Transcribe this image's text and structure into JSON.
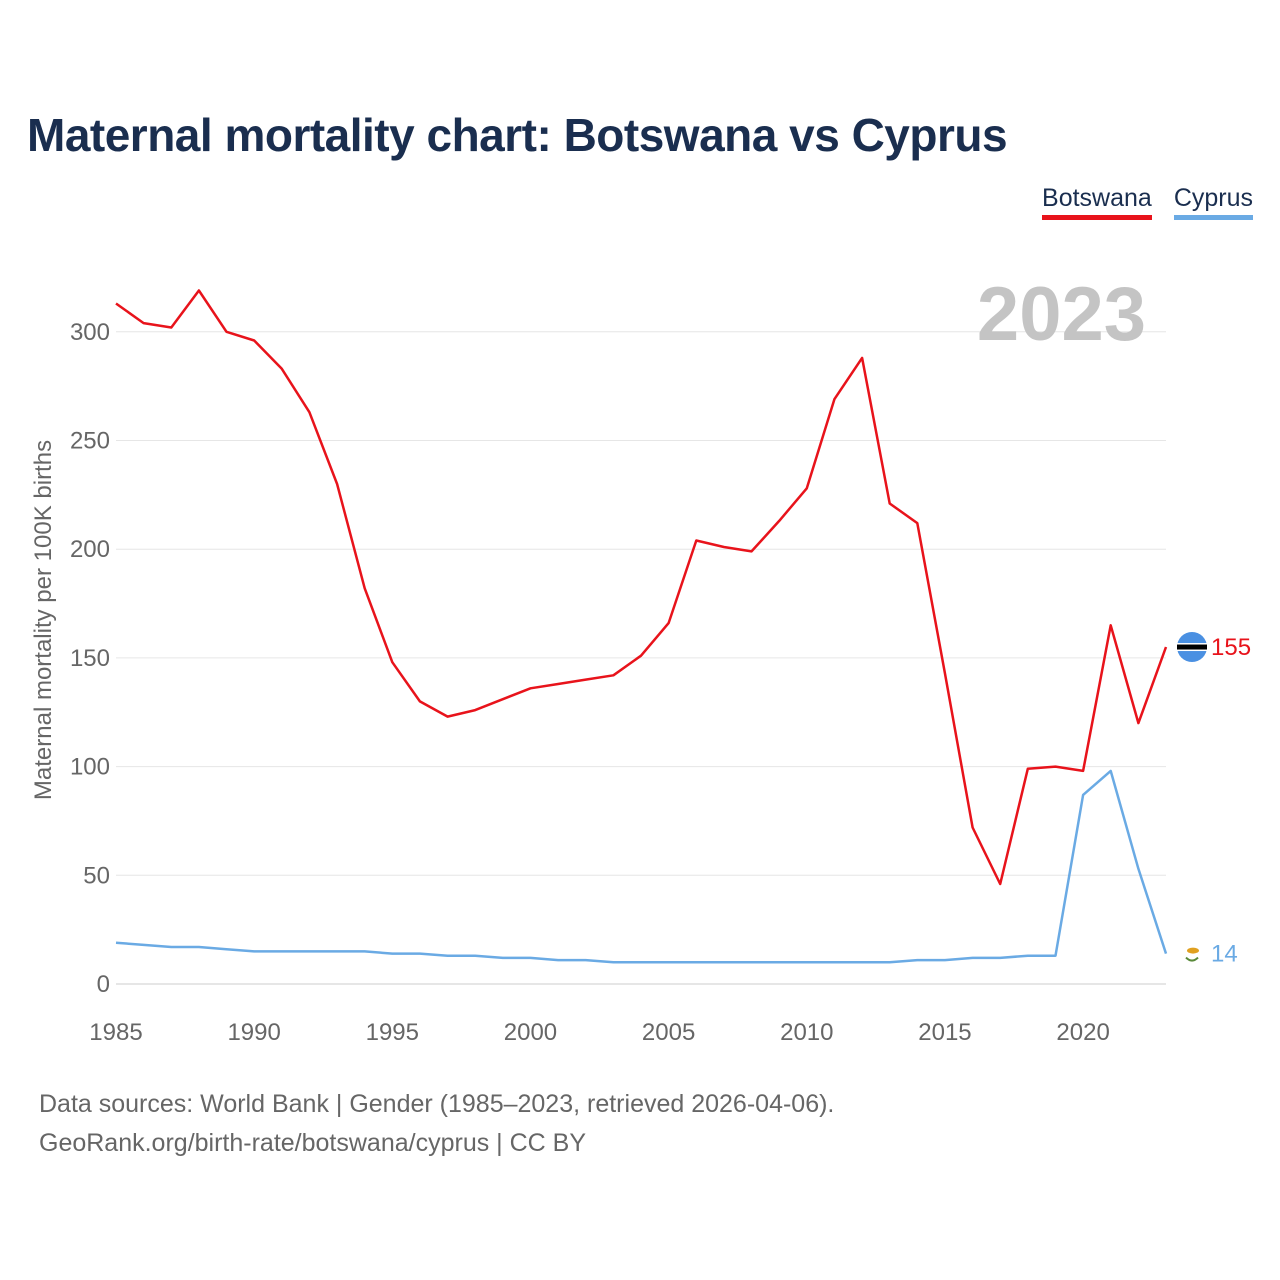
{
  "chart_data": {
    "type": "line",
    "title": "Maternal mortality chart: Botswana vs Cyprus",
    "ylabel": "Maternal mortality per 100K births",
    "xlabel": "",
    "year_label": "2023",
    "xlim": [
      1985,
      2023
    ],
    "ylim": [
      0,
      320
    ],
    "x_ticks": [
      1985,
      1990,
      1995,
      2000,
      2005,
      2010,
      2015,
      2020
    ],
    "y_ticks": [
      0,
      50,
      100,
      150,
      200,
      250,
      300
    ],
    "x": [
      1985,
      1986,
      1987,
      1988,
      1989,
      1990,
      1991,
      1992,
      1993,
      1994,
      1995,
      1996,
      1997,
      1998,
      1999,
      2000,
      2001,
      2002,
      2003,
      2004,
      2005,
      2006,
      2007,
      2008,
      2009,
      2010,
      2011,
      2012,
      2013,
      2014,
      2015,
      2016,
      2017,
      2018,
      2019,
      2020,
      2021,
      2022,
      2023
    ],
    "series": [
      {
        "name": "Botswana",
        "color": "#e8131b",
        "end_label": "155",
        "values": [
          313,
          304,
          302,
          319,
          300,
          296,
          283,
          263,
          230,
          182,
          148,
          130,
          123,
          126,
          131,
          136,
          138,
          140,
          142,
          151,
          166,
          204,
          201,
          199,
          213,
          228,
          269,
          288,
          221,
          212,
          143,
          72,
          46,
          99,
          100,
          98,
          165,
          120,
          155
        ]
      },
      {
        "name": "Cyprus",
        "color": "#6aaae4",
        "end_label": "14",
        "values": [
          19,
          18,
          17,
          17,
          16,
          15,
          15,
          15,
          15,
          15,
          14,
          14,
          13,
          13,
          12,
          12,
          11,
          11,
          10,
          10,
          10,
          10,
          10,
          10,
          10,
          10,
          10,
          10,
          10,
          11,
          11,
          12,
          12,
          13,
          13,
          87,
          98,
          53,
          14
        ]
      }
    ]
  },
  "legend": {
    "botswana": "Botswana",
    "cyprus": "Cyprus"
  },
  "footer": {
    "line1": "Data sources: World Bank | Gender (1985–2023, retrieved 2026-04-06).",
    "line2": "GeoRank.org/birth-rate/botswana/cyprus | CC BY"
  },
  "flags": {
    "botswana": "botswana-flag-icon",
    "cyprus": "cyprus-flag-icon"
  }
}
